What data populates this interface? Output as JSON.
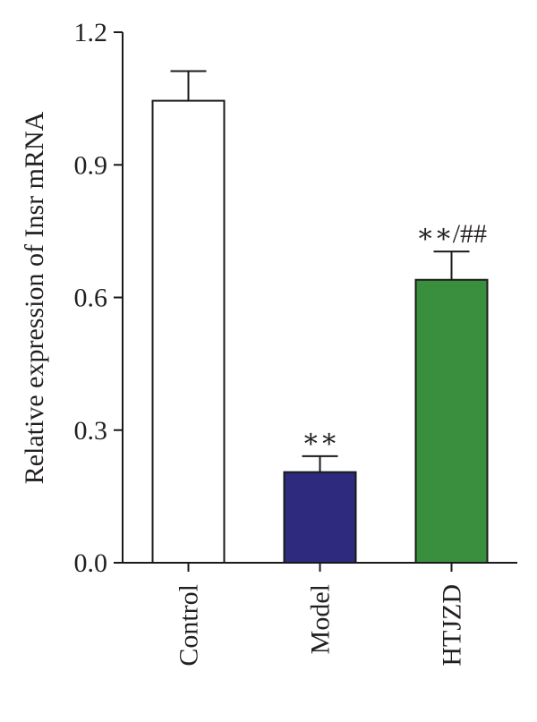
{
  "chart_data": {
    "type": "bar",
    "title": "",
    "xlabel": "",
    "ylabel": "Relative expression of Insr mRNA",
    "ylim": [
      0,
      1.2
    ],
    "yticks": [
      "0.0",
      "0.3",
      "0.6",
      "0.9",
      "1.2"
    ],
    "ytick_values": [
      0,
      0.3,
      0.6,
      0.9,
      1.2
    ],
    "categories": [
      "Control",
      "Model",
      "HTJZD"
    ],
    "values": [
      1.045,
      0.205,
      0.64
    ],
    "errors": [
      0.067,
      0.036,
      0.064
    ],
    "annotations": [
      "",
      "∗∗",
      "∗∗/##"
    ],
    "colors": [
      "#ffffff",
      "#2e2a7d",
      "#3a8f3e"
    ],
    "grid": false,
    "legend": "none"
  }
}
